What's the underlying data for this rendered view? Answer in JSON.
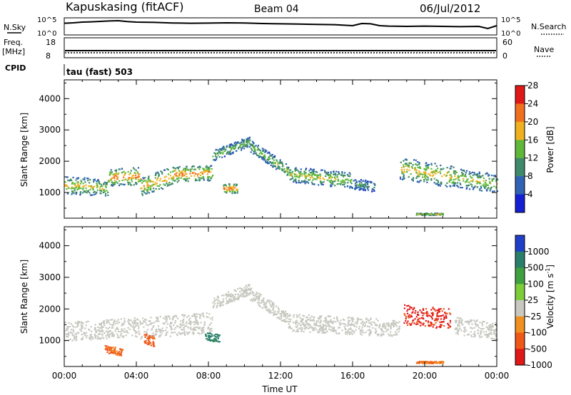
{
  "header": {
    "station": "Kapuskasing (fitACF)",
    "beam": "Beam 04",
    "date": "06/Jul/2012"
  },
  "top_panels": {
    "nsky_label": "N.Sky",
    "nsky_ticks": [
      "10^5",
      "10^0"
    ],
    "nsearch_label": "N.Search",
    "nsearch_ticks": [
      "10^5",
      "10^0"
    ],
    "freq_label": "Freq.",
    "freq_unit": "[MHz]",
    "freq_ticks": [
      "18",
      "8"
    ],
    "nave_label": "Nave",
    "nave_ticks": [
      "60",
      "0"
    ],
    "cpid_label": "CPID",
    "cpid_value": "tau (fast) 503"
  },
  "chart_data": [
    {
      "type": "line",
      "name": "noise-sky",
      "x_hours": [
        0,
        0.5,
        1,
        1.5,
        2,
        2.5,
        3,
        3.5,
        4,
        5,
        6,
        7,
        8,
        9,
        10,
        11,
        12,
        13,
        14,
        15,
        16,
        16.5,
        17,
        17.5,
        18,
        19,
        20,
        21,
        22,
        23,
        23.5,
        24
      ],
      "values": [
        0.72,
        0.75,
        0.8,
        0.82,
        0.85,
        0.88,
        0.9,
        0.84,
        0.8,
        0.78,
        0.74,
        0.72,
        0.73,
        0.75,
        0.74,
        0.7,
        0.68,
        0.66,
        0.64,
        0.62,
        0.55,
        0.7,
        0.68,
        0.55,
        0.52,
        0.5,
        0.52,
        0.5,
        0.48,
        0.5,
        0.35,
        0.55
      ],
      "ylim": [
        0,
        1
      ]
    },
    {
      "type": "heatmap",
      "name": "power",
      "xlabel": "",
      "ylabel": "Slant Range [km]",
      "xlim": [
        0,
        24
      ],
      "ylim": [
        180,
        4600
      ],
      "yticks": [
        1000,
        2000,
        3000,
        4000
      ],
      "colorbar": {
        "label": "Power [dB]",
        "ticks": [
          "4",
          "8",
          "12",
          "16",
          "20",
          "24",
          "28"
        ],
        "colors": [
          "#1420d2",
          "#2f63b4",
          "#3f8a6a",
          "#5fb83a",
          "#f0b020",
          "#f07020",
          "#e01818"
        ]
      },
      "bands": [
        {
          "x": [
            0,
            1.6
          ],
          "y_center": [
            1250,
            1200
          ],
          "thick": 550,
          "level": 0.6
        },
        {
          "x": [
            1.6,
            2.4
          ],
          "y_center": [
            1200,
            1150
          ],
          "thick": 500,
          "level": 0.55
        },
        {
          "x": [
            2.4,
            4.2
          ],
          "y_center": [
            1500,
            1550
          ],
          "thick": 550,
          "level": 0.7
        },
        {
          "x": [
            4.2,
            6
          ],
          "y_center": [
            1200,
            1550
          ],
          "thick": 600,
          "level": 0.65
        },
        {
          "x": [
            6,
            8.2
          ],
          "y_center": [
            1600,
            1650
          ],
          "thick": 500,
          "level": 0.7
        },
        {
          "x": [
            8.2,
            10.3
          ],
          "y_center": [
            2200,
            2650
          ],
          "thick": 350,
          "level": 0.45
        },
        {
          "x": [
            10.3,
            12.4
          ],
          "y_center": [
            2500,
            1700
          ],
          "thick": 400,
          "level": 0.5
        },
        {
          "x": [
            12.4,
            16
          ],
          "y_center": [
            1600,
            1400
          ],
          "thick": 500,
          "level": 0.55
        },
        {
          "x": [
            16,
            17.2
          ],
          "y_center": [
            1300,
            1200
          ],
          "thick": 350,
          "level": 0.35
        },
        {
          "x": [
            18.6,
            21.6
          ],
          "y_center": [
            1800,
            1500
          ],
          "thick": 700,
          "level": 0.6
        },
        {
          "x": [
            21.6,
            24
          ],
          "y_center": [
            1500,
            1300
          ],
          "thick": 600,
          "level": 0.55
        },
        {
          "x": [
            8.8,
            9.6
          ],
          "y_center": [
            1150,
            1150
          ],
          "thick": 300,
          "level": 0.75
        },
        {
          "x": [
            19.5,
            21
          ],
          "y_center": [
            330,
            330
          ],
          "thick": 60,
          "level": 0.6
        }
      ]
    },
    {
      "type": "heatmap",
      "name": "velocity",
      "xlabel": "Time UT",
      "ylabel": "Slant Range [km]",
      "xlim": [
        0,
        24
      ],
      "ylim": [
        180,
        4600
      ],
      "xticks": [
        "00:00",
        "04:00",
        "08:00",
        "12:00",
        "16:00",
        "20:00",
        "00:00"
      ],
      "yticks": [
        1000,
        2000,
        3000,
        4000
      ],
      "colorbar": {
        "label": "Velocity [m s",
        "label_sup": "-1",
        "label_end": "]",
        "ticks": [
          "1000",
          "500",
          "100",
          "25",
          "-25",
          "-100",
          "-500",
          "-1000"
        ],
        "colors": [
          "#1f3fc8",
          "#2a7f6a",
          "#3fa040",
          "#7dcc3a",
          "#c8c8c0",
          "#f09020",
          "#f05818",
          "#e01818"
        ]
      },
      "bands": [
        {
          "x": [
            0,
            4.2
          ],
          "y_center": [
            1300,
            1450
          ],
          "thick": 600,
          "level": 0.5
        },
        {
          "x": [
            4.2,
            8.2
          ],
          "y_center": [
            1400,
            1600
          ],
          "thick": 650,
          "level": 0.5
        },
        {
          "x": [
            8.2,
            10.3
          ],
          "y_center": [
            2200,
            2650
          ],
          "thick": 350,
          "level": 0.5
        },
        {
          "x": [
            10.3,
            12.4
          ],
          "y_center": [
            2500,
            1700
          ],
          "thick": 400,
          "level": 0.5
        },
        {
          "x": [
            12.4,
            18.6
          ],
          "y_center": [
            1600,
            1400
          ],
          "thick": 550,
          "level": 0.5
        },
        {
          "x": [
            21.6,
            24
          ],
          "y_center": [
            1500,
            1300
          ],
          "thick": 550,
          "level": 0.5
        },
        {
          "x": [
            2.2,
            3.2
          ],
          "y_center": [
            750,
            650
          ],
          "thick": 250,
          "level": 0.78
        },
        {
          "x": [
            4.4,
            5.0
          ],
          "y_center": [
            1100,
            1000
          ],
          "thick": 350,
          "level": 0.8
        },
        {
          "x": [
            18.8,
            21.4
          ],
          "y_center": [
            1850,
            1700
          ],
          "thick": 650,
          "level": 0.9
        },
        {
          "x": [
            7.8,
            8.6
          ],
          "y_center": [
            1150,
            1100
          ],
          "thick": 250,
          "level": 0.2
        },
        {
          "x": [
            19.5,
            21
          ],
          "y_center": [
            330,
            330
          ],
          "thick": 60,
          "level": 0.75
        }
      ]
    }
  ]
}
